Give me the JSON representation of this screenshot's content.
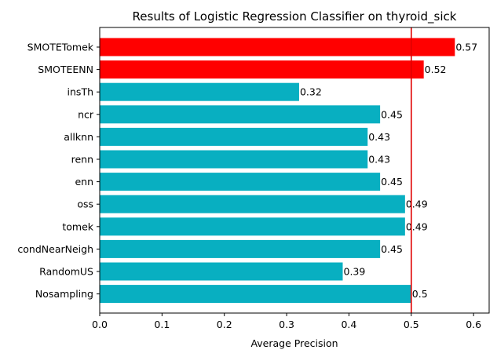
{
  "chart_data": {
    "type": "bar",
    "orientation": "horizontal",
    "title": "Results of Logistic Regression Classifier on thyroid_sick",
    "xlabel": "Average Precision",
    "ylabel": "",
    "xlim": [
      0,
      0.625
    ],
    "xticks": [
      "0.0",
      "0.1",
      "0.2",
      "0.3",
      "0.4",
      "0.5",
      "0.6"
    ],
    "categories": [
      "Nosampling",
      "RandomUS",
      "condNearNeigh",
      "tomek",
      "oss",
      "enn",
      "renn",
      "allknn",
      "ncr",
      "insTh",
      "SMOTEENN",
      "SMOTETomek"
    ],
    "values": [
      0.5,
      0.39,
      0.45,
      0.49,
      0.49,
      0.45,
      0.43,
      0.43,
      0.45,
      0.32,
      0.52,
      0.57
    ],
    "value_labels": [
      "0.5",
      "0.39",
      "0.45",
      "0.49",
      "0.49",
      "0.45",
      "0.43",
      "0.43",
      "0.45",
      "0.32",
      "0.52",
      "0.57"
    ],
    "bar_colors": [
      "#08afc1",
      "#08afc1",
      "#08afc1",
      "#08afc1",
      "#08afc1",
      "#08afc1",
      "#08afc1",
      "#08afc1",
      "#08afc1",
      "#08afc1",
      "#ff0000",
      "#ff0000"
    ],
    "reference_line": {
      "x": 0.5,
      "color": "#e00000"
    },
    "grid": false,
    "legend": "none"
  }
}
